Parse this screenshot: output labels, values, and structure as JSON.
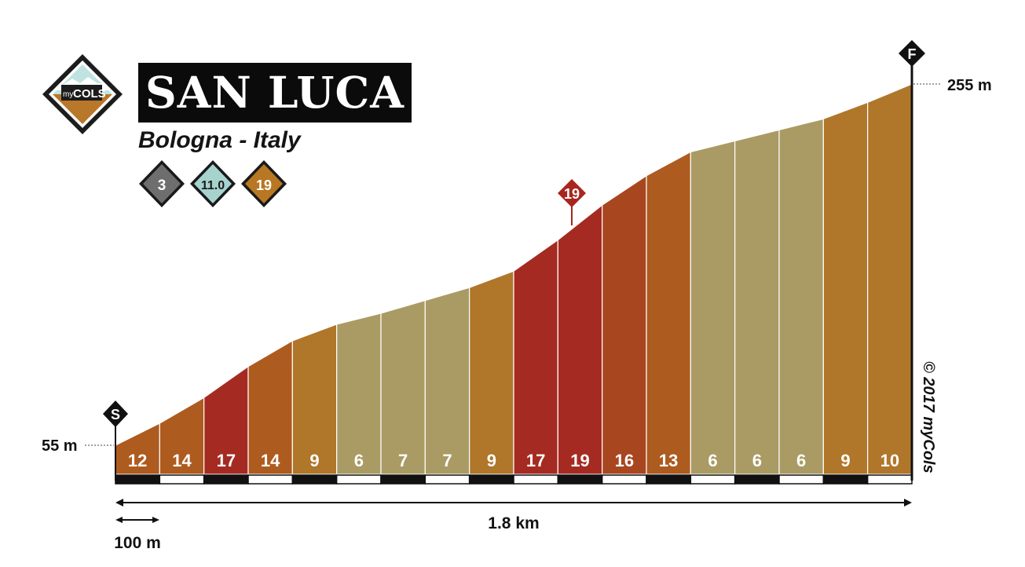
{
  "brand": {
    "logo_text_small": "my",
    "logo_text_big": "COLS"
  },
  "title": "SAN LUCA",
  "subtitle": "Bologna - Italy",
  "badges": [
    {
      "value": "3",
      "color": "#6e6e6e"
    },
    {
      "value": "11.0",
      "color": "#a7d3cf"
    },
    {
      "value": "19",
      "color": "#b87722"
    }
  ],
  "markers": {
    "start": "S",
    "finish": "F",
    "max_gradient": "19"
  },
  "copyright": "© 2017 myCols",
  "chart_data": {
    "type": "area",
    "title": "SAN LUCA",
    "segment_length_m": 100,
    "total_distance_label": "1.8 km",
    "scale_label": "100 m",
    "start_elevation_label": "55 m",
    "finish_elevation_label": "255 m",
    "start_elevation_m": 55,
    "finish_elevation_m": 255,
    "gradients": [
      12,
      14,
      17,
      14,
      9,
      6,
      7,
      7,
      9,
      17,
      19,
      16,
      13,
      6,
      6,
      6,
      9,
      10
    ],
    "max_gradient_segment_index": 10
  }
}
